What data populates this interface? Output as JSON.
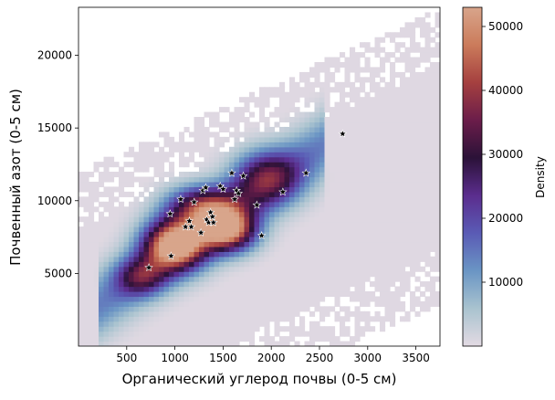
{
  "chart_data": {
    "type": "heatmap",
    "title": "",
    "xlabel": "Органический углерод почвы (0-5 см)",
    "ylabel": "Почвенный азот (0-5 см)",
    "xlim": [
      0,
      3750
    ],
    "ylim": [
      0,
      23300
    ],
    "x_ticks": [
      500,
      1000,
      1500,
      2000,
      2500,
      3000,
      3500
    ],
    "y_ticks": [
      5000,
      10000,
      15000,
      20000
    ],
    "x_tick_labels": [
      "500",
      "1000",
      "1500",
      "2000",
      "2500",
      "3000",
      "3500"
    ],
    "y_tick_labels": [
      "5000",
      "10000",
      "15000",
      "20000"
    ],
    "grid": false,
    "colorbar": {
      "label": "Density",
      "range": [
        0,
        53000
      ],
      "ticks": [
        10000,
        20000,
        30000,
        40000,
        50000
      ],
      "tick_labels": [
        "10000",
        "20000",
        "30000",
        "40000",
        "50000"
      ],
      "colormap_stops": [
        "#e3dae3",
        "#a9c3cf",
        "#6a95c4",
        "#5a5bb5",
        "#5b2d8e",
        "#2b1238",
        "#6b1d4a",
        "#a5403f",
        "#cb7b5b",
        "#d8a58b"
      ]
    },
    "density_peaks": [
      {
        "x": 1000,
        "y": 7000,
        "weight": 52000,
        "sx": 220,
        "sy": 1200
      },
      {
        "x": 1550,
        "y": 8000,
        "weight": 47000,
        "sx": 200,
        "sy": 1000
      },
      {
        "x": 1300,
        "y": 9600,
        "weight": 34000,
        "sx": 260,
        "sy": 1000
      },
      {
        "x": 1950,
        "y": 11600,
        "weight": 26000,
        "sx": 240,
        "sy": 1300
      },
      {
        "x": 650,
        "y": 4800,
        "weight": 22000,
        "sx": 180,
        "sy": 900
      }
    ],
    "series": [
      {
        "marker": "star",
        "points": [
          {
            "x": 730,
            "y": 5400
          },
          {
            "x": 960,
            "y": 6200
          },
          {
            "x": 950,
            "y": 9100
          },
          {
            "x": 1060,
            "y": 10100
          },
          {
            "x": 1110,
            "y": 8200
          },
          {
            "x": 1150,
            "y": 8600
          },
          {
            "x": 1170,
            "y": 8200
          },
          {
            "x": 1200,
            "y": 9900
          },
          {
            "x": 1270,
            "y": 7800
          },
          {
            "x": 1290,
            "y": 10700
          },
          {
            "x": 1320,
            "y": 10900
          },
          {
            "x": 1330,
            "y": 8700
          },
          {
            "x": 1350,
            "y": 8500
          },
          {
            "x": 1370,
            "y": 9200
          },
          {
            "x": 1390,
            "y": 8900
          },
          {
            "x": 1400,
            "y": 8500
          },
          {
            "x": 1470,
            "y": 11000
          },
          {
            "x": 1500,
            "y": 10800
          },
          {
            "x": 1590,
            "y": 11900
          },
          {
            "x": 1620,
            "y": 10100
          },
          {
            "x": 1640,
            "y": 10700
          },
          {
            "x": 1660,
            "y": 10500
          },
          {
            "x": 1710,
            "y": 11700
          },
          {
            "x": 1850,
            "y": 9700
          },
          {
            "x": 1900,
            "y": 7600
          },
          {
            "x": 2120,
            "y": 10600
          },
          {
            "x": 2360,
            "y": 11900
          },
          {
            "x": 2740,
            "y": 14600
          }
        ]
      }
    ]
  }
}
